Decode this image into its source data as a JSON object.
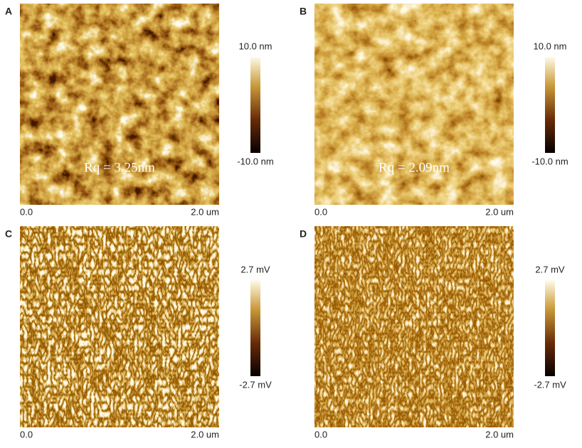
{
  "panels": [
    {
      "label": "A",
      "scale_max": "10.0 nm",
      "scale_min": "-10.0 nm",
      "x_start": "0.0",
      "x_end": "2.0 um",
      "annotation": "Rq = 3.25nm"
    },
    {
      "label": "B",
      "scale_max": "10.0 nm",
      "scale_min": "-10.0 nm",
      "x_start": "0.0",
      "x_end": "2.0 um",
      "annotation": "Rq = 2.09nm"
    },
    {
      "label": "C",
      "scale_max": "2.7 mV",
      "scale_min": "-2.7 mV",
      "x_start": "0.0",
      "x_end": "2.0 um"
    },
    {
      "label": "D",
      "scale_max": "2.7 mV",
      "scale_min": "-2.7 mV",
      "x_start": "0.0",
      "x_end": "2.0 um"
    }
  ]
}
